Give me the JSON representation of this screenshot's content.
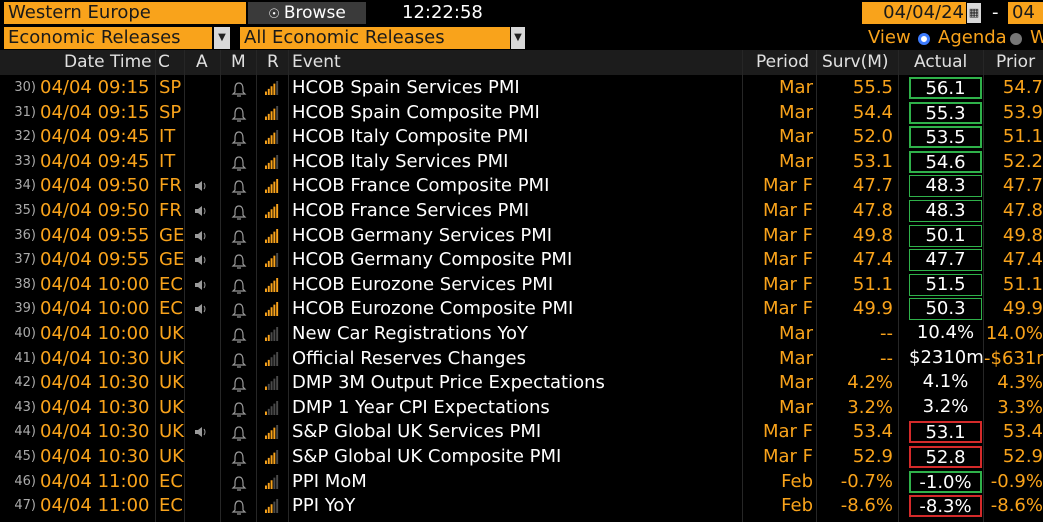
{
  "topbar": {
    "region": "Western Europe",
    "browse_label": "Browse",
    "clock": "12:22:58",
    "start_date": "04/04/24",
    "dash": "-",
    "end_date_partial": "04"
  },
  "filterbar": {
    "category": "Economic Releases",
    "subcategory": "All Economic Releases",
    "view_label": "View",
    "view_agenda": "Agenda",
    "view_other_partial": "W"
  },
  "columns": {
    "datetime": "Date Time",
    "country": "C",
    "alert": "A",
    "memo": "M",
    "relevance": "R",
    "event": "Event",
    "period": "Period",
    "survey": "Surv(M)",
    "actual": "Actual",
    "prior": "Prior"
  },
  "colors": {
    "accent": "#f9a31b",
    "beat": "#2fb14a",
    "miss": "#d42a2a",
    "background": "#000000"
  },
  "rows": [
    {
      "idx": "30)",
      "datetime": "04/04 09:15",
      "country": "SP",
      "speaker": false,
      "relevance": 4,
      "event": "HCOB Spain Services PMI",
      "period": "Mar",
      "survey": "55.5",
      "actual": "56.1",
      "prior": "54.7",
      "mark": "beat"
    },
    {
      "idx": "31)",
      "datetime": "04/04 09:15",
      "country": "SP",
      "speaker": false,
      "relevance": 4,
      "event": "HCOB Spain Composite PMI",
      "period": "Mar",
      "survey": "54.4",
      "actual": "55.3",
      "prior": "53.9",
      "mark": "beat"
    },
    {
      "idx": "32)",
      "datetime": "04/04 09:45",
      "country": "IT",
      "speaker": false,
      "relevance": 4,
      "event": "HCOB Italy Composite PMI",
      "period": "Mar",
      "survey": "52.0",
      "actual": "53.5",
      "prior": "51.1",
      "mark": "beat"
    },
    {
      "idx": "33)",
      "datetime": "04/04 09:45",
      "country": "IT",
      "speaker": false,
      "relevance": 4,
      "event": "HCOB Italy Services PMI",
      "period": "Mar",
      "survey": "53.1",
      "actual": "54.6",
      "prior": "52.2",
      "mark": "beat"
    },
    {
      "idx": "34)",
      "datetime": "04/04 09:50",
      "country": "FR",
      "speaker": true,
      "relevance": 5,
      "event": "HCOB France Composite PMI",
      "period": "Mar F",
      "survey": "47.7",
      "actual": "48.3",
      "prior": "47.7",
      "mark": "beat-thin"
    },
    {
      "idx": "35)",
      "datetime": "04/04 09:50",
      "country": "FR",
      "speaker": true,
      "relevance": 5,
      "event": "HCOB France Services PMI",
      "period": "Mar F",
      "survey": "47.8",
      "actual": "48.3",
      "prior": "47.8",
      "mark": "beat-thin"
    },
    {
      "idx": "36)",
      "datetime": "04/04 09:55",
      "country": "GE",
      "speaker": true,
      "relevance": 5,
      "event": "HCOB Germany Services PMI",
      "period": "Mar F",
      "survey": "49.8",
      "actual": "50.1",
      "prior": "49.8",
      "mark": "beat-thin"
    },
    {
      "idx": "37)",
      "datetime": "04/04 09:55",
      "country": "GE",
      "speaker": true,
      "relevance": 4,
      "event": "HCOB Germany Composite PMI",
      "period": "Mar F",
      "survey": "47.4",
      "actual": "47.7",
      "prior": "47.4",
      "mark": "beat-thin"
    },
    {
      "idx": "38)",
      "datetime": "04/04 10:00",
      "country": "EC",
      "speaker": true,
      "relevance": 5,
      "event": "HCOB Eurozone Services PMI",
      "period": "Mar F",
      "survey": "51.1",
      "actual": "51.5",
      "prior": "51.1",
      "mark": "beat-thin"
    },
    {
      "idx": "39)",
      "datetime": "04/04 10:00",
      "country": "EC",
      "speaker": true,
      "relevance": 5,
      "event": "HCOB Eurozone Composite PMI",
      "period": "Mar F",
      "survey": "49.9",
      "actual": "50.3",
      "prior": "49.9",
      "mark": "beat-thin"
    },
    {
      "idx": "40)",
      "datetime": "04/04 10:00",
      "country": "UK",
      "speaker": false,
      "relevance": 2,
      "event": "New Car Registrations YoY",
      "period": "Mar",
      "survey": "--",
      "actual": "10.4%",
      "prior": "14.0%",
      "mark": "none"
    },
    {
      "idx": "41)",
      "datetime": "04/04 10:30",
      "country": "UK",
      "speaker": false,
      "relevance": 2,
      "event": "Official Reserves Changes",
      "period": "Mar",
      "survey": "--",
      "actual": "$2310m",
      "prior": "-$631m",
      "mark": "none"
    },
    {
      "idx": "42)",
      "datetime": "04/04 10:30",
      "country": "UK",
      "speaker": false,
      "relevance": 1,
      "event": "DMP 3M Output Price Expectations",
      "period": "Mar",
      "survey": "4.2%",
      "actual": "4.1%",
      "prior": "4.3%",
      "mark": "none"
    },
    {
      "idx": "43)",
      "datetime": "04/04 10:30",
      "country": "UK",
      "speaker": false,
      "relevance": 1,
      "event": "DMP 1 Year CPI Expectations",
      "period": "Mar",
      "survey": "3.2%",
      "actual": "3.2%",
      "prior": "3.3%",
      "mark": "none"
    },
    {
      "idx": "44)",
      "datetime": "04/04 10:30",
      "country": "UK",
      "speaker": true,
      "relevance": 4,
      "event": "S&P Global UK Services PMI",
      "period": "Mar F",
      "survey": "53.4",
      "actual": "53.1",
      "prior": "53.4",
      "mark": "miss"
    },
    {
      "idx": "45)",
      "datetime": "04/04 10:30",
      "country": "UK",
      "speaker": false,
      "relevance": 4,
      "event": "S&P Global UK Composite PMI",
      "period": "Mar F",
      "survey": "52.9",
      "actual": "52.8",
      "prior": "52.9",
      "mark": "miss"
    },
    {
      "idx": "46)",
      "datetime": "04/04 11:00",
      "country": "EC",
      "speaker": false,
      "relevance": 3,
      "event": "PPI MoM",
      "period": "Feb",
      "survey": "-0.7%",
      "actual": "-1.0%",
      "prior": "-0.9%",
      "mark": "beat"
    },
    {
      "idx": "47)",
      "datetime": "04/04 11:00",
      "country": "EC",
      "speaker": false,
      "relevance": 3,
      "event": "PPI YoY",
      "period": "Feb",
      "survey": "-8.6%",
      "actual": "-8.3%",
      "prior": "-8.6%",
      "mark": "miss"
    }
  ]
}
